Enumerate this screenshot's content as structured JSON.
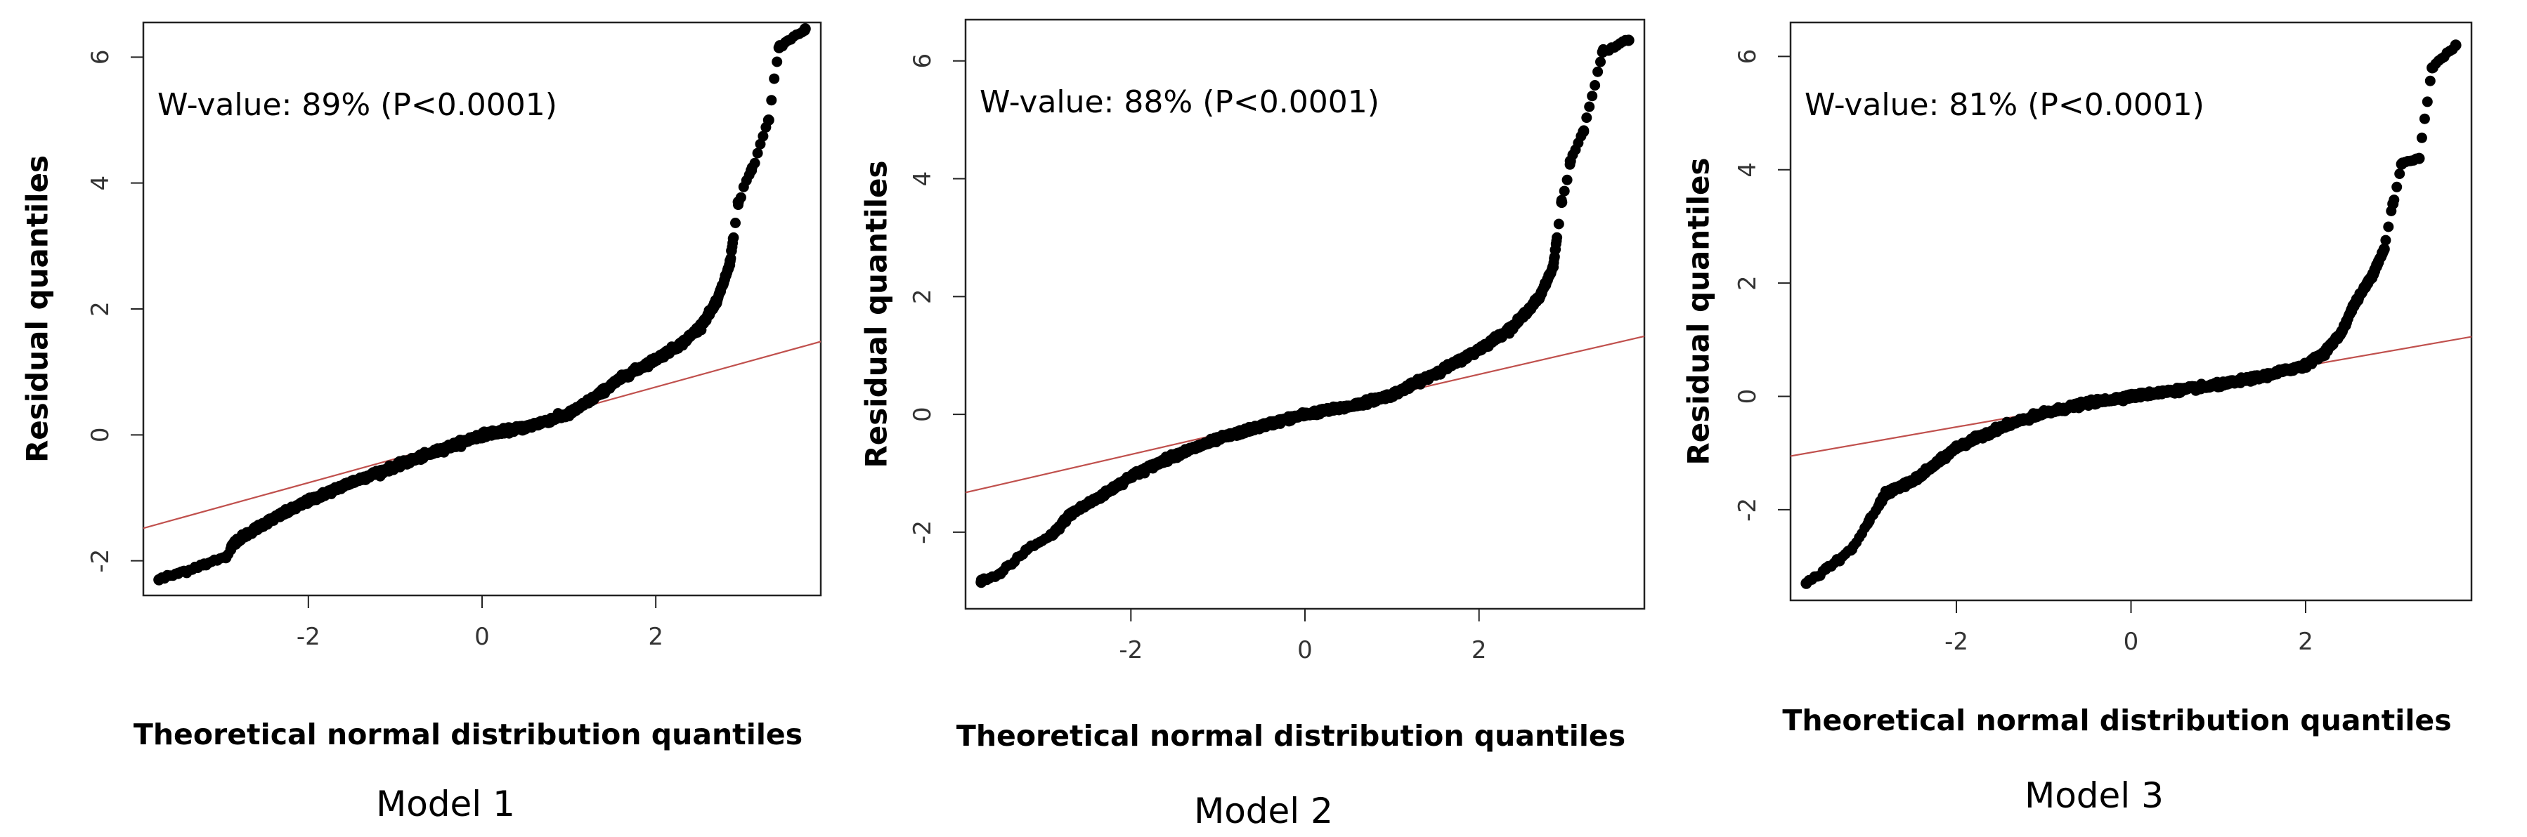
{
  "chart_data": [
    {
      "type": "scatter",
      "caption": "Model 1",
      "annotation": "W-value: 89% (P<0.0001)",
      "xlabel": "Theoretical normal distribution quantiles",
      "ylabel": "Residual quantiles",
      "xlim": [
        -3.9,
        3.9
      ],
      "ylim": [
        -2.55,
        6.55
      ],
      "xticks": [
        -2,
        0,
        2
      ],
      "xtick_labels": [
        "-2",
        "0",
        "2"
      ],
      "yticks": [
        -2,
        0,
        2,
        4,
        6
      ],
      "ytick_labels": [
        "-2",
        "0",
        "2",
        "4",
        "6"
      ],
      "reference_line": {
        "slope": 0.38,
        "intercept": 0.0,
        "color": "#c0504d"
      },
      "profile": [
        [
          -3.72,
          -2.3
        ],
        [
          -3.5,
          -2.2
        ],
        [
          -3.2,
          -2.05
        ],
        [
          -2.95,
          -1.95
        ],
        [
          -2.85,
          -1.7
        ],
        [
          -2.5,
          -1.4
        ],
        [
          -2.0,
          -1.05
        ],
        [
          -1.5,
          -0.75
        ],
        [
          -1.0,
          -0.5
        ],
        [
          -0.5,
          -0.25
        ],
        [
          0.0,
          0.0
        ],
        [
          0.5,
          0.12
        ],
        [
          1.0,
          0.33
        ],
        [
          1.3,
          0.6
        ],
        [
          1.6,
          0.9
        ],
        [
          2.0,
          1.2
        ],
        [
          2.3,
          1.45
        ],
        [
          2.5,
          1.7
        ],
        [
          2.7,
          2.1
        ],
        [
          2.85,
          2.7
        ],
        [
          2.95,
          3.7
        ],
        [
          3.1,
          4.2
        ],
        [
          3.3,
          5.0
        ],
        [
          3.42,
          6.15
        ],
        [
          3.72,
          6.45
        ]
      ]
    },
    {
      "type": "scatter",
      "caption": "Model 2",
      "annotation": "W-value: 88% (P<0.0001)",
      "xlabel": "Theoretical normal distribution quantiles",
      "ylabel": "Residual quantiles",
      "xlim": [
        -3.9,
        3.9
      ],
      "ylim": [
        -3.3,
        6.7
      ],
      "xticks": [
        -2,
        0,
        2
      ],
      "xtick_labels": [
        "-2",
        "0",
        "2"
      ],
      "yticks": [
        -2,
        0,
        2,
        4,
        6
      ],
      "ytick_labels": [
        "-2",
        "0",
        "2",
        "4",
        "6"
      ],
      "reference_line": {
        "slope": 0.34,
        "intercept": 0.0,
        "color": "#c0504d"
      },
      "profile": [
        [
          -3.72,
          -2.85
        ],
        [
          -3.5,
          -2.7
        ],
        [
          -3.2,
          -2.3
        ],
        [
          -2.9,
          -2.05
        ],
        [
          -2.7,
          -1.7
        ],
        [
          -2.3,
          -1.35
        ],
        [
          -2.0,
          -1.05
        ],
        [
          -1.5,
          -0.7
        ],
        [
          -1.0,
          -0.42
        ],
        [
          -0.5,
          -0.2
        ],
        [
          0.0,
          0.0
        ],
        [
          0.5,
          0.13
        ],
        [
          1.0,
          0.33
        ],
        [
          1.3,
          0.55
        ],
        [
          1.7,
          0.85
        ],
        [
          2.0,
          1.1
        ],
        [
          2.4,
          1.5
        ],
        [
          2.7,
          2.0
        ],
        [
          2.85,
          2.5
        ],
        [
          2.95,
          3.6
        ],
        [
          3.05,
          4.3
        ],
        [
          3.2,
          4.8
        ],
        [
          3.42,
          6.15
        ],
        [
          3.72,
          6.35
        ]
      ]
    },
    {
      "type": "scatter",
      "caption": "Model 3",
      "annotation": "W-value: 81% (P<0.0001)",
      "xlabel": "Theoretical normal distribution quantiles",
      "ylabel": "Residual quantiles",
      "xlim": [
        -3.9,
        3.9
      ],
      "ylim": [
        -3.6,
        6.6
      ],
      "xticks": [
        -2,
        0,
        2
      ],
      "xtick_labels": [
        "-2",
        "0",
        "2"
      ],
      "yticks": [
        -2,
        0,
        2,
        4,
        6
      ],
      "ytick_labels": [
        "-2",
        "0",
        "2",
        "4",
        "6"
      ],
      "reference_line": {
        "slope": 0.27,
        "intercept": 0.0,
        "color": "#c0504d"
      },
      "profile": [
        [
          -3.72,
          -3.3
        ],
        [
          -3.5,
          -3.05
        ],
        [
          -3.2,
          -2.7
        ],
        [
          -3.0,
          -2.2
        ],
        [
          -2.8,
          -1.7
        ],
        [
          -2.5,
          -1.5
        ],
        [
          -2.2,
          -1.15
        ],
        [
          -2.0,
          -0.9
        ],
        [
          -1.5,
          -0.55
        ],
        [
          -1.0,
          -0.3
        ],
        [
          -0.5,
          -0.12
        ],
        [
          0.0,
          0.0
        ],
        [
          0.5,
          0.1
        ],
        [
          1.0,
          0.2
        ],
        [
          1.5,
          0.35
        ],
        [
          2.0,
          0.55
        ],
        [
          2.2,
          0.75
        ],
        [
          2.4,
          1.1
        ],
        [
          2.55,
          1.6
        ],
        [
          2.75,
          2.1
        ],
        [
          2.9,
          2.6
        ],
        [
          3.0,
          3.4
        ],
        [
          3.1,
          4.1
        ],
        [
          3.3,
          4.2
        ],
        [
          3.45,
          5.8
        ],
        [
          3.72,
          6.2
        ]
      ]
    }
  ]
}
